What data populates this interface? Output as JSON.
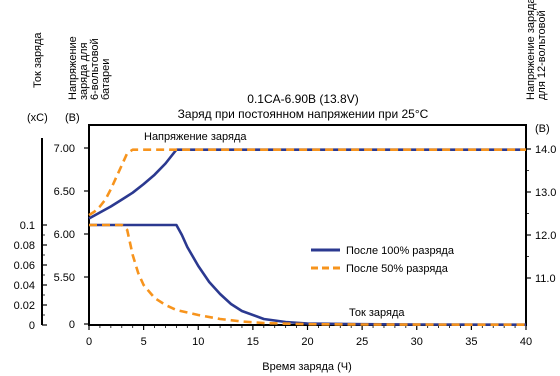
{
  "chart_data": {
    "type": "line",
    "title": "0.1CA-6.90В (13.8V)",
    "subtitle": "Заряд при постоянном напряжении при 25°C",
    "xlabel": "Время заряда (Ч)",
    "xlim": [
      0,
      40
    ],
    "x_ticks": [
      0,
      5,
      10,
      15,
      20,
      25,
      30,
      35,
      40
    ],
    "axes": {
      "current": {
        "label": "Ток заряда",
        "unit": "(xC)",
        "ticks": [
          "0",
          "0.02",
          "0.04",
          "0.06",
          "0.08",
          "0.1"
        ],
        "tick_values": [
          0,
          0.02,
          0.04,
          0.06,
          0.08,
          0.1
        ]
      },
      "voltage_6v": {
        "label": "Напряжение заряда для 6-вольтовой батареи",
        "label_lines": [
          "Напряжение",
          "заряда для",
          "6-вольтовой",
          "батареи"
        ],
        "unit": "(В)",
        "ticks": [
          "0",
          "5.50",
          "6.00",
          "6.50",
          "7.00"
        ],
        "tick_values": [
          5.0,
          5.5,
          6.0,
          6.5,
          7.0
        ]
      },
      "voltage_12v": {
        "label": "Напряжение заряда для 12-вольтовой батареи",
        "label_lines": [
          "Напряжение заряда",
          "для 12-вольтовой"
        ],
        "unit": "(В)",
        "ticks": [
          "11.0",
          "12.0",
          "13.0",
          "14.0"
        ],
        "tick_values": [
          11.0,
          12.0,
          13.0,
          14.0
        ]
      }
    },
    "annotations": {
      "voltage": "Напряжение заряда",
      "current": "Ток заряда"
    },
    "legend": {
      "placement": "center-right",
      "entries": [
        "После 100% разряда",
        "После 50% разряда"
      ]
    },
    "series": [
      {
        "name": "После 100% разряда",
        "kind": "voltage",
        "color": "#2b3990",
        "dash": false,
        "x": [
          0,
          1,
          2,
          3,
          4,
          5,
          6,
          7,
          8,
          10,
          15,
          20,
          30,
          40
        ],
        "y": [
          6.18,
          6.25,
          6.32,
          6.4,
          6.48,
          6.58,
          6.69,
          6.82,
          6.98,
          6.98,
          6.98,
          6.98,
          6.98,
          6.98
        ]
      },
      {
        "name": "После 50% разряда",
        "kind": "voltage",
        "color": "#f7941d",
        "dash": true,
        "x": [
          0,
          0.5,
          1,
          1.5,
          2,
          2.5,
          3,
          3.5,
          4,
          10,
          20,
          30,
          40
        ],
        "y": [
          6.22,
          6.26,
          6.32,
          6.4,
          6.52,
          6.66,
          6.8,
          6.94,
          6.98,
          6.98,
          6.98,
          6.98,
          6.98
        ]
      },
      {
        "name": "После 100% разряда",
        "kind": "current",
        "color": "#2b3990",
        "dash": false,
        "x": [
          0,
          8,
          8.5,
          9,
          10,
          11,
          12,
          13,
          14,
          16,
          18,
          20,
          25,
          30,
          40
        ],
        "y": [
          0.1,
          0.1,
          0.09,
          0.078,
          0.059,
          0.043,
          0.031,
          0.021,
          0.014,
          0.006,
          0.003,
          0.0015,
          0.0008,
          0.0005,
          0.0003
        ]
      },
      {
        "name": "После 50% разряда",
        "kind": "current",
        "color": "#f7941d",
        "dash": true,
        "x": [
          0,
          3,
          3.5,
          4,
          4.5,
          5,
          6,
          7,
          8,
          10,
          12,
          14,
          16,
          20,
          25,
          30,
          40
        ],
        "y": [
          0.1,
          0.1,
          0.095,
          0.07,
          0.052,
          0.04,
          0.027,
          0.02,
          0.015,
          0.01,
          0.006,
          0.0035,
          0.002,
          0.0008,
          0.0005,
          0.0004,
          0.0003
        ]
      }
    ]
  }
}
